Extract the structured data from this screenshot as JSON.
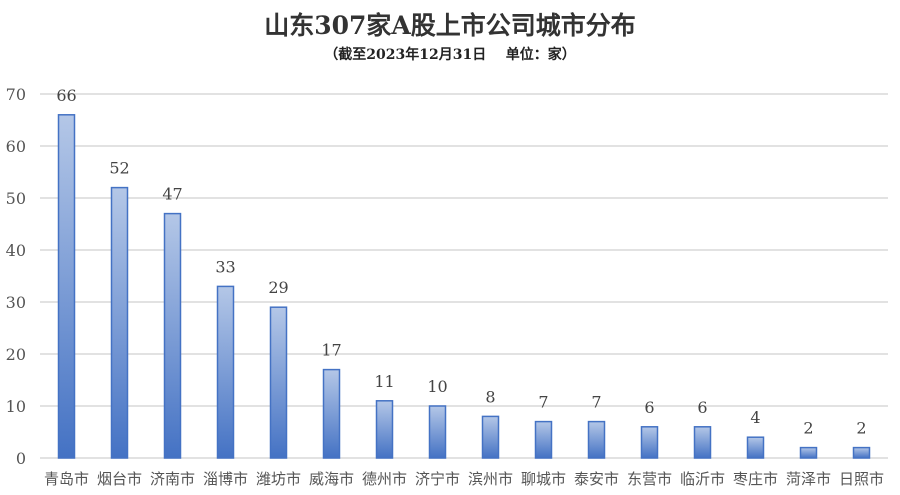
{
  "chart_data": {
    "type": "bar",
    "title": "山东307家A股上市公司城市分布",
    "subtitle": "（截至2023年12月31日    单位：家）",
    "categories": [
      "青岛市",
      "烟台市",
      "济南市",
      "淄博市",
      "潍坊市",
      "威海市",
      "德州市",
      "济宁市",
      "滨州市",
      "聊城市",
      "泰安市",
      "东营市",
      "临沂市",
      "枣庄市",
      "菏泽市",
      "日照市"
    ],
    "values": [
      66,
      52,
      47,
      33,
      29,
      17,
      11,
      10,
      8,
      7,
      7,
      6,
      6,
      4,
      2,
      2
    ],
    "ylim": [
      0,
      70
    ],
    "yticks": [
      0,
      10,
      20,
      30,
      40,
      50,
      60,
      70
    ],
    "grid": true,
    "data_labels": true,
    "colors": {
      "bar_top": "#b4c7e7",
      "bar_bottom": "#4472c4",
      "bar_border": "#4472c4",
      "grid": "#d9d9d9"
    }
  }
}
